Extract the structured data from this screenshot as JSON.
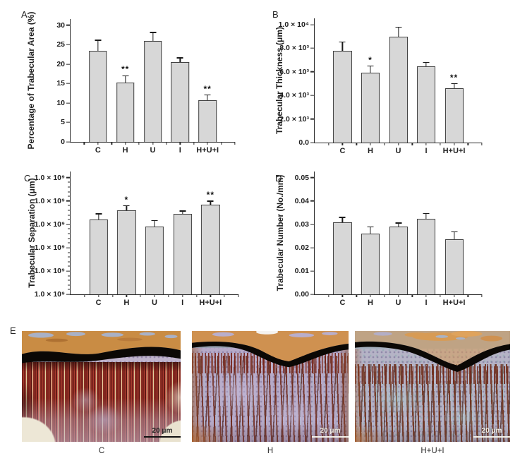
{
  "panels": {
    "A": "A",
    "B": "B",
    "C": "C",
    "D": "D",
    "E": "E"
  },
  "colors": {
    "bar_fill": "#d7d7d7",
    "bar_stroke": "#414141",
    "axis": "#2a2a2a",
    "text": "#1f1f1f"
  },
  "chart_data": [
    {
      "panel": "A",
      "type": "bar",
      "title": "",
      "xlabel": "",
      "ylabel": "Percentage of Trabecular Area (%)",
      "categories": [
        "C",
        "H",
        "U",
        "I",
        "H+U+I"
      ],
      "values": [
        23.5,
        15.2,
        26.0,
        20.5,
        10.7
      ],
      "errors": [
        2.5,
        1.7,
        2.0,
        1.0,
        1.2
      ],
      "significance": [
        "",
        "**",
        "",
        "",
        "**"
      ],
      "ylim": [
        0,
        30
      ],
      "ytick_values": [
        0,
        5,
        10,
        15,
        20,
        25,
        30
      ],
      "ytick_labels": [
        "0",
        "5",
        "10",
        "15",
        "20",
        "25",
        "30"
      ],
      "grid": false,
      "legend": null
    },
    {
      "panel": "B",
      "type": "bar",
      "title": "",
      "xlabel": "",
      "ylabel": "Trabecular Thickness (μm)",
      "categories": [
        "C",
        "H",
        "U",
        "I",
        "H+U+I"
      ],
      "values": [
        7750,
        5900,
        8950,
        6450,
        4600
      ],
      "errors": [
        750,
        550,
        780,
        280,
        350
      ],
      "significance": [
        "",
        "*",
        "",
        "",
        "**"
      ],
      "ylim": [
        0,
        10000
      ],
      "ytick_values": [
        0,
        2000,
        4000,
        6000,
        8000,
        10000
      ],
      "ytick_labels": [
        "0.0",
        "2.0 × 10³",
        "4.0 × 10³",
        "6.0 × 10³",
        "8.0 × 10³",
        "1.0 × 10⁴"
      ],
      "grid": false,
      "legend": null
    },
    {
      "panel": "C",
      "type": "bar",
      "title": "",
      "xlabel": "",
      "ylabel": "Trabecular Separation (μm)",
      "categories": [
        "C",
        "H",
        "U",
        "I",
        "H+U+I"
      ],
      "values": [
        0.64,
        0.72,
        0.58,
        0.69,
        0.77
      ],
      "errors": [
        0.045,
        0.035,
        0.05,
        0.02,
        0.025
      ],
      "values_note_axis_units": "fraction of full y-axis span as drawn",
      "significance": [
        "",
        "*",
        "",
        "",
        "**"
      ],
      "ylim": [
        0,
        1
      ],
      "ytick_values": [
        0,
        0.2,
        0.4,
        0.6,
        0.8,
        1
      ],
      "ytick_labels": [
        "1.0 × 10⁹",
        "1.0 × 10⁹",
        "1.0 × 10⁹",
        "1.0 × 10⁹",
        "1.0 × 10⁹",
        "1.0 × 10⁹"
      ],
      "y_minor_per_interval": 4,
      "grid": false,
      "legend": null
    },
    {
      "panel": "D",
      "type": "bar",
      "title": "",
      "xlabel": "",
      "ylabel": "Trabecular Number (No./mm)",
      "categories": [
        "C",
        "H",
        "U",
        "I",
        "H+U+I"
      ],
      "values": [
        0.031,
        0.026,
        0.029,
        0.0325,
        0.0235
      ],
      "errors": [
        0.0018,
        0.0028,
        0.0014,
        0.002,
        0.003
      ],
      "significance": [
        "",
        "",
        "",
        "",
        ""
      ],
      "ylim": [
        0,
        0.05
      ],
      "ytick_values": [
        0,
        0.01,
        0.02,
        0.03,
        0.04,
        0.05
      ],
      "ytick_labels": [
        "0.00",
        "0.01",
        "0.02",
        "0.03",
        "0.04",
        "0.05"
      ],
      "grid": false,
      "legend": null
    }
  ],
  "micrographs": {
    "panel": "E",
    "labels": [
      "C",
      "H",
      "H+U+I"
    ],
    "scale_bar": "20 μm"
  }
}
